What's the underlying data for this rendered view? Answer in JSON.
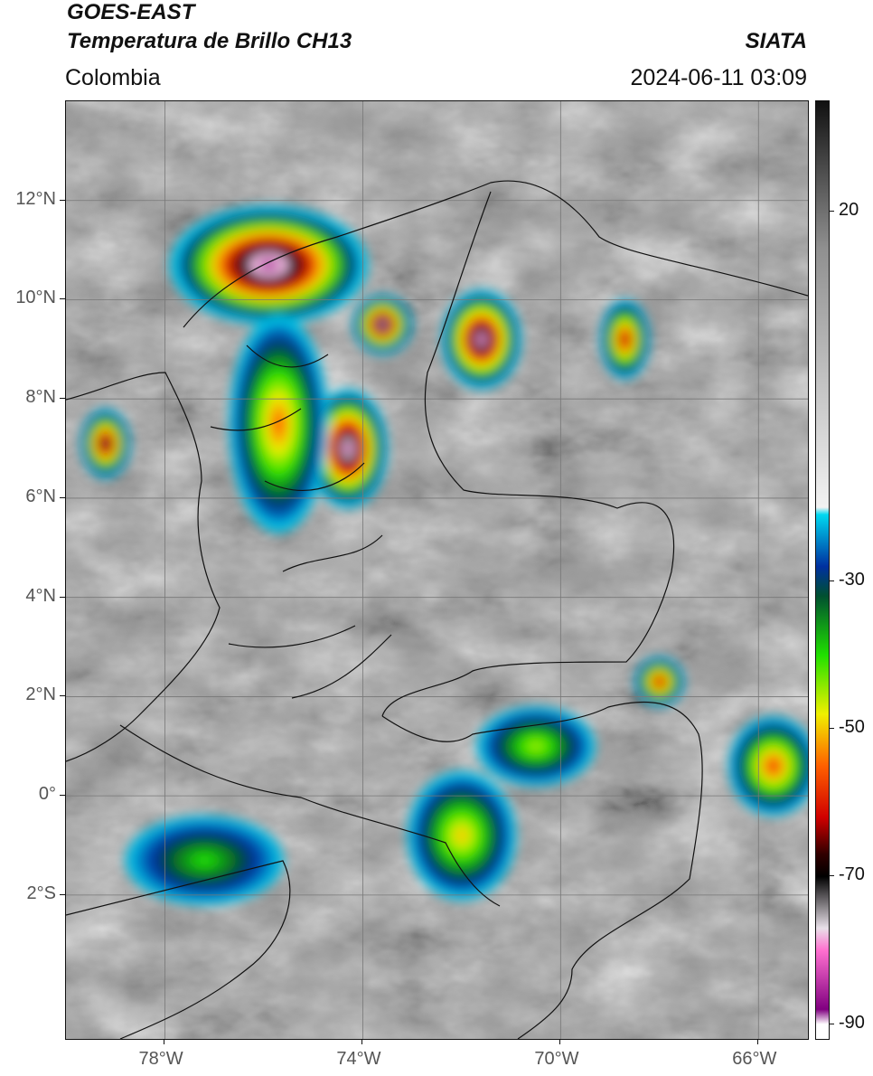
{
  "header": {
    "satellite": "GOES-EAST",
    "product": "Temperatura de Brillo CH13",
    "region": "Colombia",
    "agency": "SIATA",
    "datetime": "2024-06-11 03:09"
  },
  "map": {
    "lon_range": [
      -80,
      -65
    ],
    "lat_range": [
      -4.9,
      14
    ],
    "lat_ticks": [
      {
        "value": 12,
        "label": "12°N"
      },
      {
        "value": 10,
        "label": "10°N"
      },
      {
        "value": 8,
        "label": "8°N"
      },
      {
        "value": 6,
        "label": "6°N"
      },
      {
        "value": 4,
        "label": "4°N"
      },
      {
        "value": 2,
        "label": "2°N"
      },
      {
        "value": 0,
        "label": "0°"
      },
      {
        "value": -2,
        "label": "2°S"
      }
    ],
    "lon_ticks": [
      {
        "value": -78,
        "label": "78°W"
      },
      {
        "value": -74,
        "label": "74°W"
      },
      {
        "value": -70,
        "label": "70°W"
      },
      {
        "value": -66,
        "label": "66°W"
      }
    ],
    "storm_cells": [
      {
        "name": "caribbean-northwest-cell",
        "lon": -75.9,
        "lat": 10.7,
        "rx": 2.0,
        "ry": 1.2,
        "min_temp": -85
      },
      {
        "name": "magdalena-cell",
        "lon": -73.6,
        "lat": 9.5,
        "rx": 0.6,
        "ry": 0.6,
        "min_temp": -78
      },
      {
        "name": "maracaibo-cell",
        "lon": -71.6,
        "lat": 9.2,
        "rx": 0.8,
        "ry": 1.0,
        "min_temp": -80
      },
      {
        "name": "santander-cell",
        "lon": -74.3,
        "lat": 7.0,
        "rx": 0.8,
        "ry": 1.2,
        "min_temp": -82
      },
      {
        "name": "antioquia-band",
        "lon": -75.7,
        "lat": 7.5,
        "rx": 1.0,
        "ry": 2.2,
        "min_temp": -55
      },
      {
        "name": "pacific-cell",
        "lon": -79.2,
        "lat": 7.1,
        "rx": 0.5,
        "ry": 0.7,
        "min_temp": -72
      },
      {
        "name": "venezuela-east-cell",
        "lon": -68.7,
        "lat": 9.2,
        "rx": 0.5,
        "ry": 0.8,
        "min_temp": -65
      },
      {
        "name": "guainia-cell",
        "lon": -68.0,
        "lat": 2.3,
        "rx": 0.5,
        "ry": 0.5,
        "min_temp": -65
      },
      {
        "name": "vaupes-cell",
        "lon": -70.5,
        "lat": 1.0,
        "rx": 1.2,
        "ry": 0.8,
        "min_temp": -45
      },
      {
        "name": "amazonas-cell",
        "lon": -72.0,
        "lat": -0.8,
        "rx": 1.1,
        "ry": 1.3,
        "min_temp": -50
      },
      {
        "name": "brazil-east-cell",
        "lon": -65.7,
        "lat": 0.6,
        "rx": 0.9,
        "ry": 1.0,
        "min_temp": -58
      },
      {
        "name": "ecuador-peru-cells",
        "lon": -77.2,
        "lat": -1.3,
        "rx": 1.6,
        "ry": 0.9,
        "min_temp": -40
      }
    ]
  },
  "colorbar": {
    "range": [
      -92,
      35
    ],
    "ticks": [
      {
        "value": 20,
        "label": "20"
      },
      {
        "value": -30,
        "label": "-30"
      },
      {
        "value": -50,
        "label": "-50"
      },
      {
        "value": -70,
        "label": "-70"
      },
      {
        "value": -90,
        "label": "-90"
      }
    ],
    "stops": [
      {
        "t": 35,
        "color": "#111111"
      },
      {
        "t": 15,
        "color": "#909090"
      },
      {
        "t": -20,
        "color": "#f2f2f2"
      },
      {
        "t": -21,
        "color": "#00d8f0"
      },
      {
        "t": -28,
        "color": "#0030a0"
      },
      {
        "t": -32,
        "color": "#005030"
      },
      {
        "t": -40,
        "color": "#20e000"
      },
      {
        "t": -48,
        "color": "#f0f000"
      },
      {
        "t": -55,
        "color": "#ff6000"
      },
      {
        "t": -62,
        "color": "#d00000"
      },
      {
        "t": -67,
        "color": "#300000"
      },
      {
        "t": -70,
        "color": "#000000"
      },
      {
        "t": -77,
        "color": "#e8e0e8"
      },
      {
        "t": -80,
        "color": "#ff70d0"
      },
      {
        "t": -88,
        "color": "#800080"
      },
      {
        "t": -90,
        "color": "#ffffff"
      }
    ]
  }
}
